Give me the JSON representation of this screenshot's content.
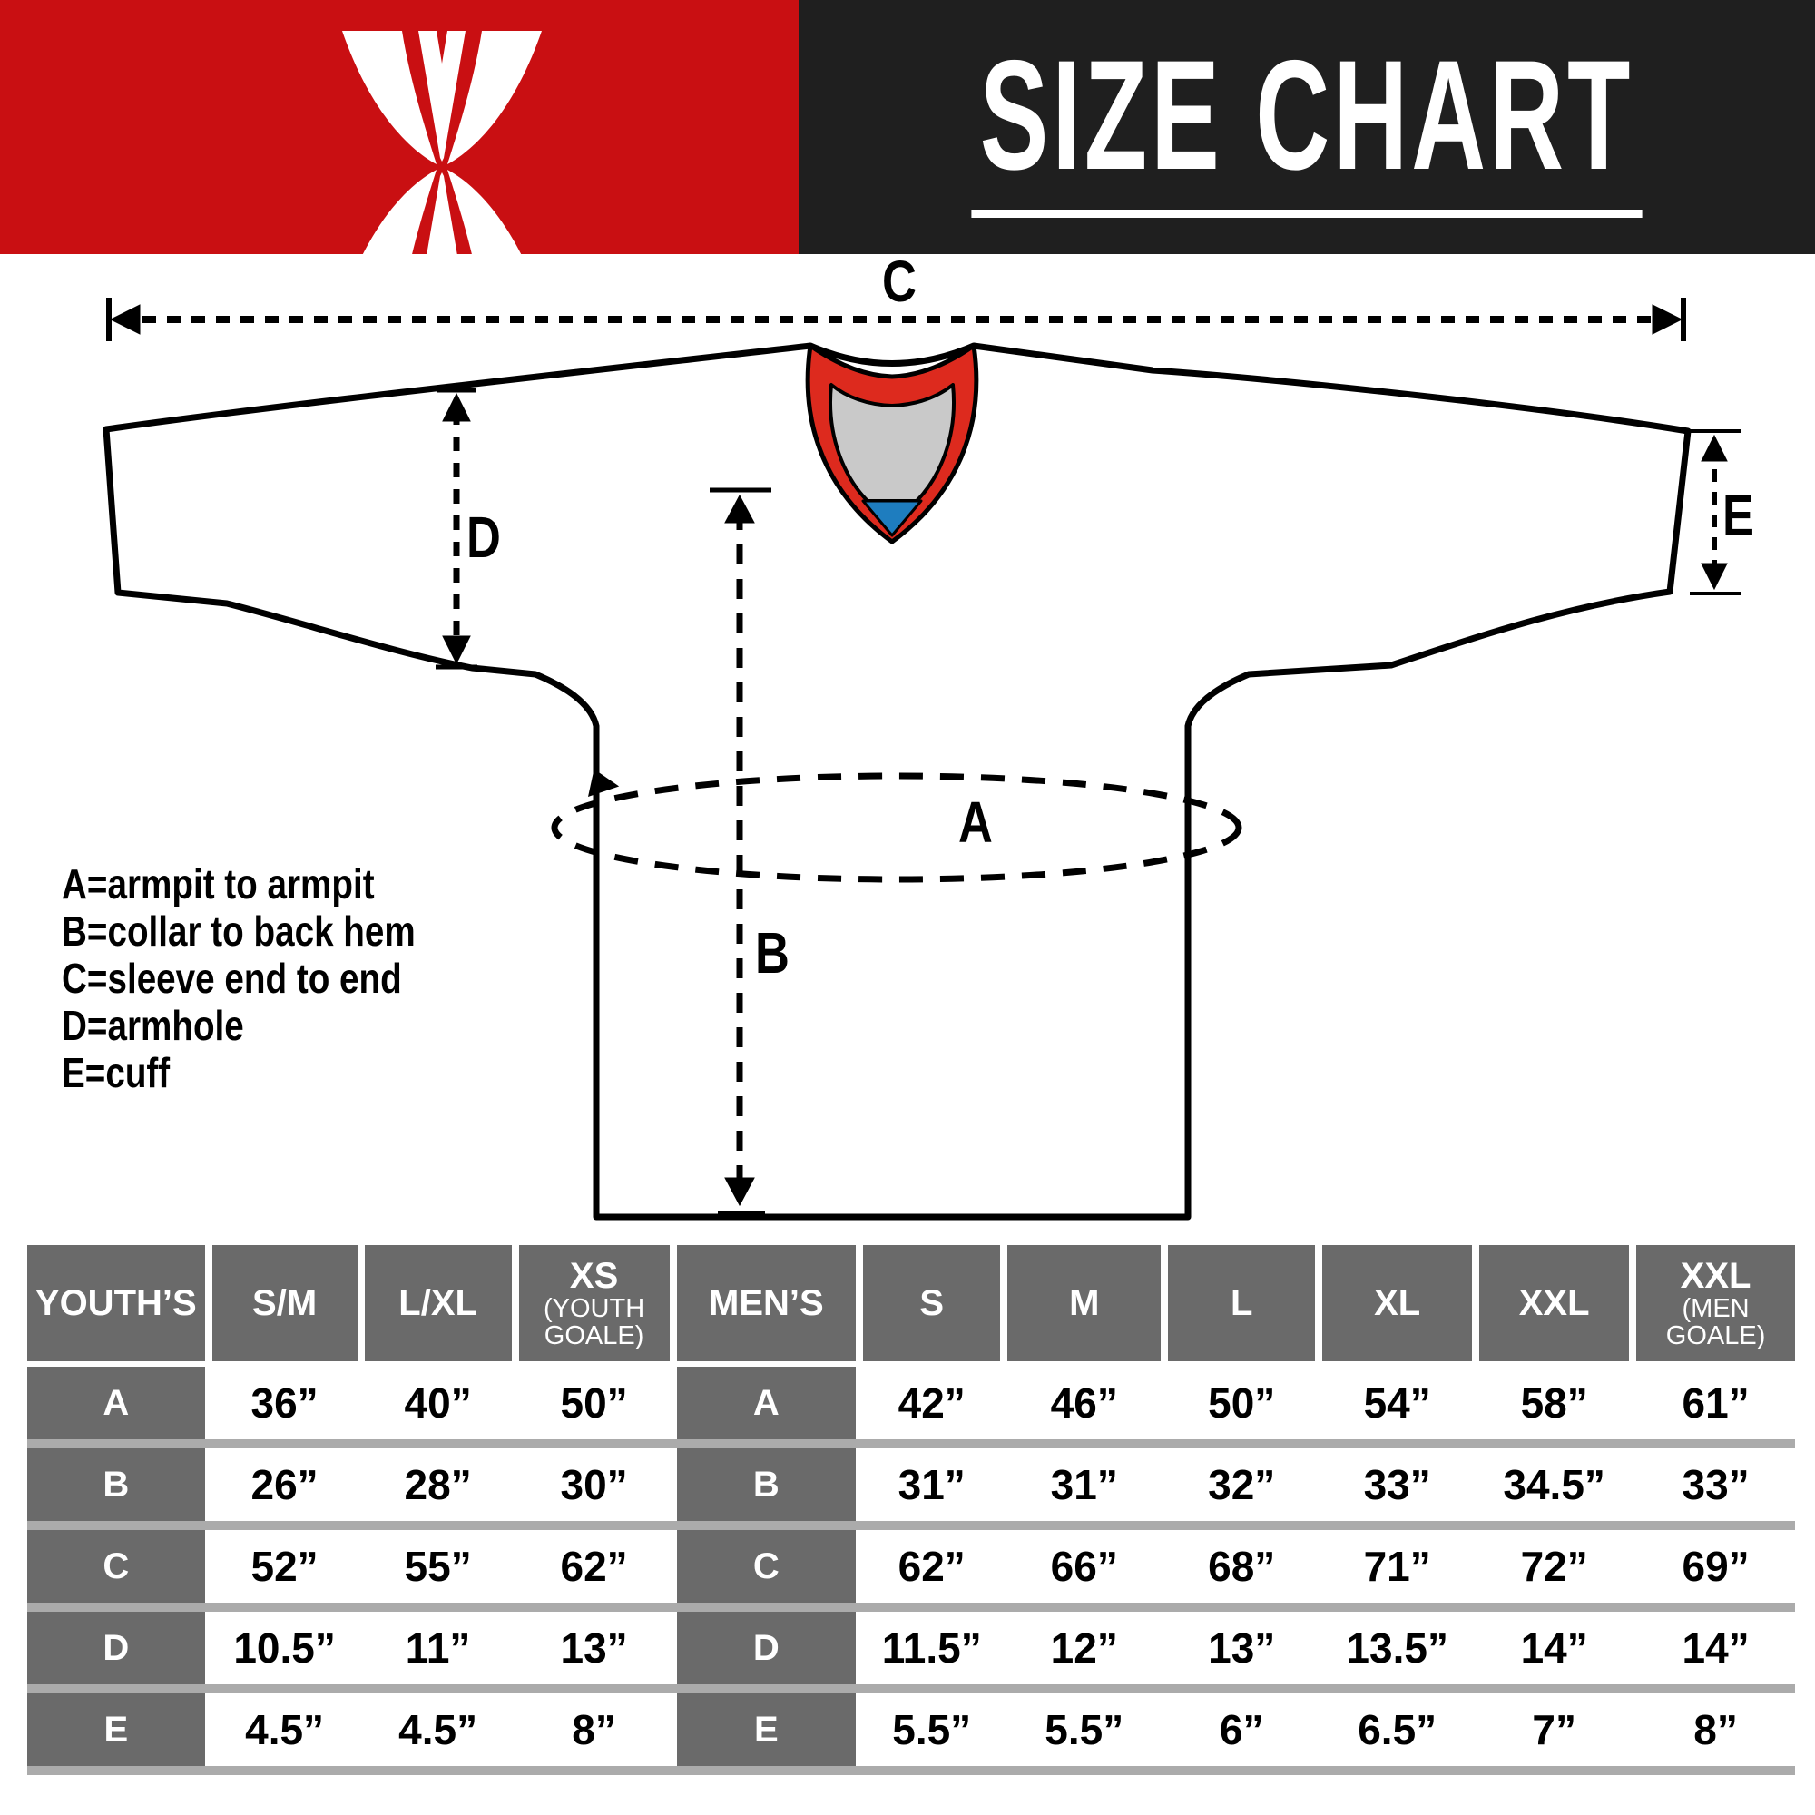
{
  "banner": {
    "brand_wordmark": "≡KXK≡",
    "title": "SIZE CHART",
    "colors": {
      "red": "#C90F12",
      "dark": "#1F1F1F"
    }
  },
  "diagram": {
    "labels": {
      "a": "A",
      "b": "B",
      "c": "C",
      "d": "D",
      "e": "E"
    },
    "legend": [
      "A=armpit to armpit",
      "B=collar to back hem",
      "C=sleeve end to end",
      "D=armhole",
      "E=cuff"
    ],
    "colors": {
      "collar_red": "#DD2A1E",
      "collar_gray": "#C9C9C9",
      "collar_blue": "#1E7DBF",
      "outline": "#000000"
    }
  },
  "size_table": {
    "columns": [
      {
        "label": "YOUTH’S"
      },
      {
        "label": "S/M"
      },
      {
        "label": "L/XL"
      },
      {
        "label": "XS",
        "sub": "(YOUTH GOALE)"
      },
      {
        "label": "MEN’S"
      },
      {
        "label": "S"
      },
      {
        "label": "M"
      },
      {
        "label": "L"
      },
      {
        "label": "XL"
      },
      {
        "label": "XXL"
      },
      {
        "label": "XXL",
        "sub": "(MEN GOALE)"
      }
    ],
    "rows": [
      [
        "A",
        "36”",
        "40”",
        "50”",
        "A",
        "42”",
        "46”",
        "50”",
        "54”",
        "58”",
        "61”"
      ],
      [
        "B",
        "26”",
        "28”",
        "30”",
        "B",
        "31”",
        "31”",
        "32”",
        "33”",
        "34.5”",
        "33”"
      ],
      [
        "C",
        "52”",
        "55”",
        "62”",
        "C",
        "62”",
        "66”",
        "68”",
        "71”",
        "72”",
        "69”"
      ],
      [
        "D",
        "10.5”",
        "11”",
        "13”",
        "D",
        "11.5”",
        "12”",
        "13”",
        "13.5”",
        "14”",
        "14”"
      ],
      [
        "E",
        "4.5”",
        "4.5”",
        "8”",
        "E",
        "5.5”",
        "5.5”",
        "6”",
        "6.5”",
        "7”",
        "8”"
      ]
    ]
  }
}
